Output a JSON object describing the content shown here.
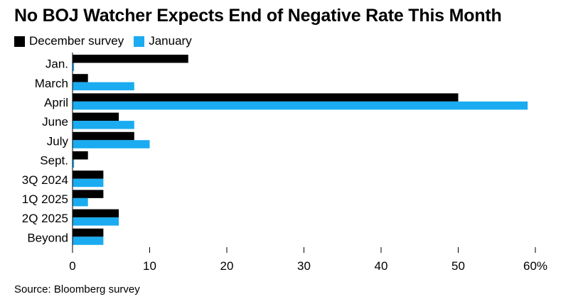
{
  "chart_data": {
    "type": "bar",
    "orientation": "horizontal",
    "title": "No BOJ Watcher Expects End of Negative Rate This Month",
    "categories": [
      "Jan.",
      "March",
      "April",
      "June",
      "July",
      "Sept.",
      "3Q 2024",
      "1Q 2025",
      "2Q 2025",
      "Beyond"
    ],
    "series": [
      {
        "name": "December survey",
        "color": "#000000",
        "values": [
          15,
          2,
          50,
          6,
          8,
          2,
          4,
          4,
          6,
          4
        ]
      },
      {
        "name": "January",
        "color": "#1aabf0",
        "values": [
          0.2,
          8,
          59,
          8,
          10,
          0.2,
          4,
          2,
          6,
          4
        ]
      }
    ],
    "x_ticks": [
      "0",
      "10",
      "20",
      "30",
      "40",
      "50",
      "60%"
    ],
    "x_tick_values": [
      0,
      10,
      20,
      30,
      40,
      50,
      60
    ],
    "xlim": [
      0,
      60
    ],
    "grid": false,
    "legend_position": "top-left",
    "source": "Source: Bloomberg survey"
  }
}
